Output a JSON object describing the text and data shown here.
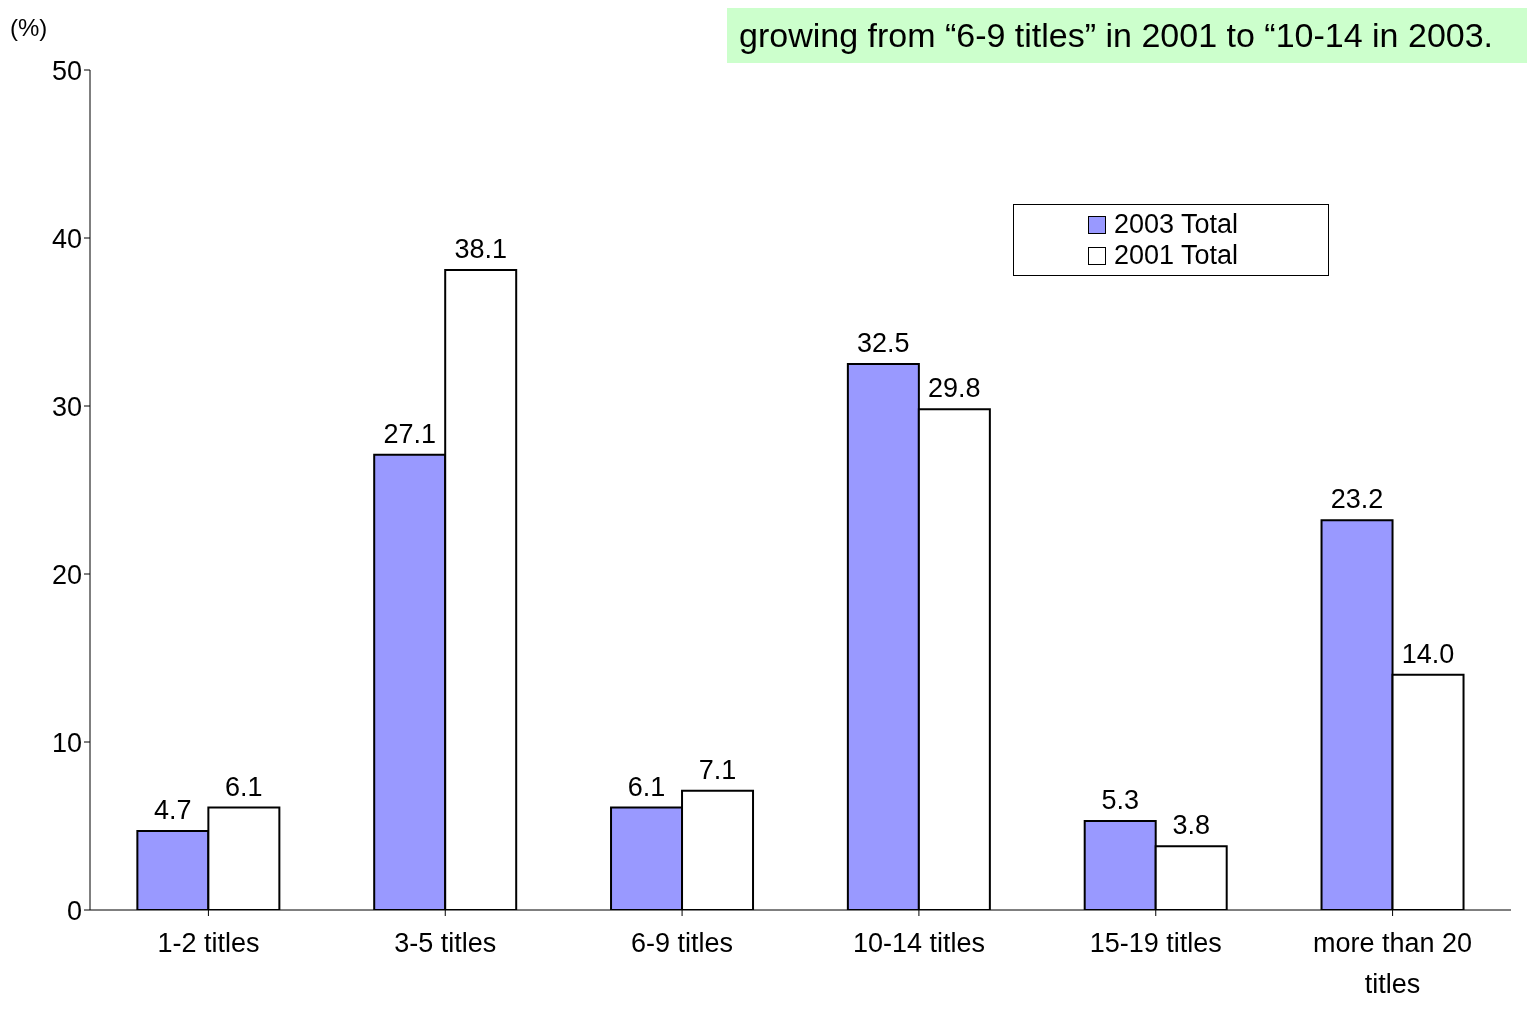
{
  "chart_data": {
    "type": "bar",
    "ylabel": "(%)",
    "annotations": [
      "growing from “6-9 titles” in 2001 to “10-14 in 2003."
    ],
    "categories": [
      "1-2 titles",
      "3-5 titles",
      "6-9 titles",
      "10-14 titles",
      "15-19 titles",
      "more than 20 titles"
    ],
    "series": [
      {
        "name": "2003 Total",
        "color": "#9999ff",
        "values": [
          4.7,
          27.1,
          6.1,
          32.5,
          5.3,
          23.2
        ],
        "value_labels": [
          "4.7",
          "27.1",
          "6.1",
          "32.5",
          "5.3",
          "23.2"
        ]
      },
      {
        "name": "2001 Total",
        "color": "#ffffff",
        "values": [
          6.1,
          38.1,
          7.1,
          29.8,
          3.8,
          14.0
        ],
        "value_labels": [
          "6.1",
          "38.1",
          "7.1",
          "29.8",
          "3.8",
          "14.0"
        ]
      }
    ],
    "ylim": [
      0,
      50
    ],
    "yticks": [
      0,
      10,
      20,
      30,
      40,
      50
    ],
    "grid": false,
    "legend": "top right"
  }
}
